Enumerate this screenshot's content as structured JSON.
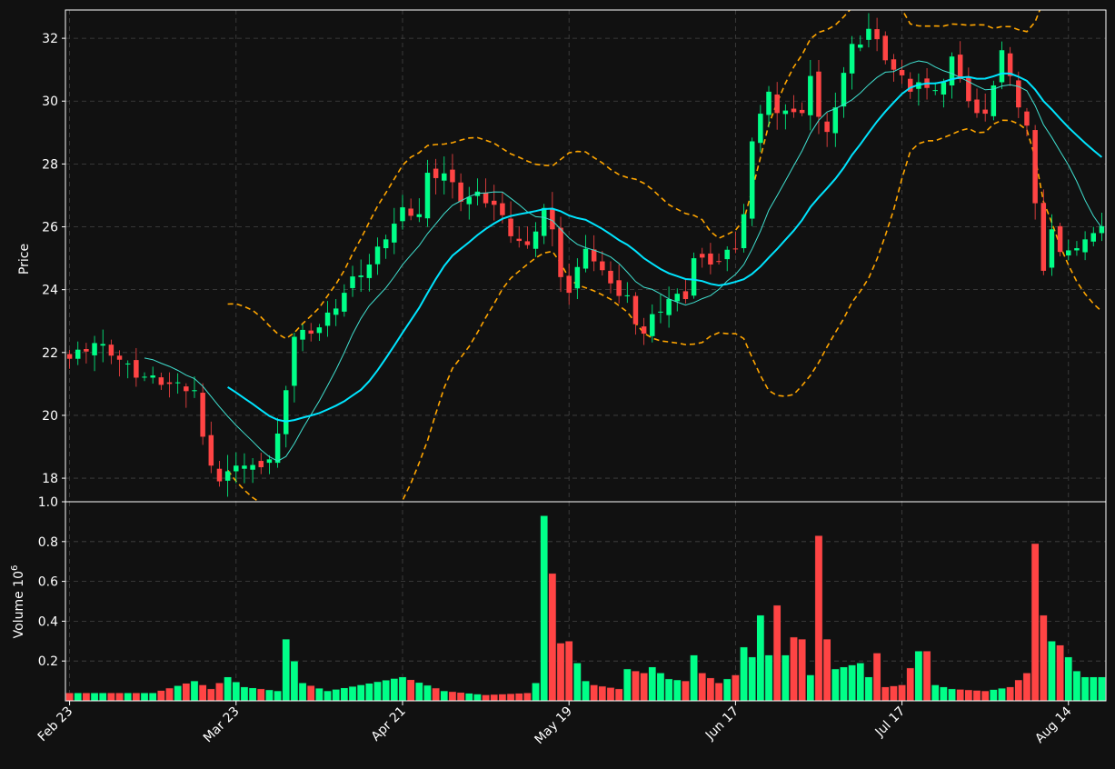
{
  "chart_data": {
    "type": "candlestick",
    "colors": {
      "background": "#111111",
      "up": "#00ff88",
      "down": "#ff4444",
      "grid": "#444444",
      "axes": "#ffffff",
      "sma_long": "#00e5ff",
      "sma_short": "#40e0d0",
      "bands": "#ffa500"
    },
    "price_panel": {
      "ylabel": "Price",
      "ylim": [
        17.25,
        32.9
      ],
      "yticks": [
        "18",
        "20",
        "22",
        "24",
        "26",
        "28",
        "30",
        "32"
      ],
      "grid": true
    },
    "volume_panel": {
      "ylabel": "Volume  10",
      "ylabel_exponent": "6",
      "ylim": [
        0,
        1.0
      ],
      "yticks": [
        "0.2",
        "0.4",
        "0.6",
        "0.8",
        "1.0"
      ],
      "grid": true
    },
    "x_ticks": [
      {
        "label": "Feb 23",
        "index": 0
      },
      {
        "label": "Mar 23",
        "index": 20
      },
      {
        "label": "Apr 21",
        "index": 40
      },
      {
        "label": "May 19",
        "index": 60
      },
      {
        "label": "Jun 17",
        "index": 80
      },
      {
        "label": "Jul 17",
        "index": 100
      },
      {
        "label": "Aug 14",
        "index": 120
      }
    ],
    "n_periods": 125,
    "anchors": {
      "close": [
        [
          0,
          21.8
        ],
        [
          3,
          22.3
        ],
        [
          5,
          22.0
        ],
        [
          8,
          21.3
        ],
        [
          12,
          21.0
        ],
        [
          15,
          20.8
        ],
        [
          16,
          19.2
        ],
        [
          17,
          18.5
        ],
        [
          18,
          17.9
        ],
        [
          19,
          18.1
        ],
        [
          20,
          18.5
        ],
        [
          22,
          18.3
        ],
        [
          24,
          18.6
        ],
        [
          25,
          19.3
        ],
        [
          27,
          22.5
        ],
        [
          30,
          22.8
        ],
        [
          32,
          23.5
        ],
        [
          34,
          24.3
        ],
        [
          36,
          24.8
        ],
        [
          38,
          25.7
        ],
        [
          40,
          26.5
        ],
        [
          42,
          26.4
        ],
        [
          43,
          27.6
        ],
        [
          45,
          27.7
        ],
        [
          47,
          26.9
        ],
        [
          49,
          27.0
        ],
        [
          51,
          26.7
        ],
        [
          53,
          25.8
        ],
        [
          55,
          25.3
        ],
        [
          57,
          26.6
        ],
        [
          58,
          25.8
        ],
        [
          59,
          24.5
        ],
        [
          60,
          23.9
        ],
        [
          61,
          24.6
        ],
        [
          62,
          25.4
        ],
        [
          63,
          24.9
        ],
        [
          64,
          24.5
        ],
        [
          65,
          24.3
        ],
        [
          66,
          23.8
        ],
        [
          67,
          23.7
        ],
        [
          68,
          23.0
        ],
        [
          69,
          22.6
        ],
        [
          70,
          23.1
        ],
        [
          72,
          23.7
        ],
        [
          74,
          23.8
        ],
        [
          75,
          25.0
        ],
        [
          76,
          24.9
        ],
        [
          78,
          24.9
        ],
        [
          80,
          25.4
        ],
        [
          81,
          26.4
        ],
        [
          82,
          28.6
        ],
        [
          83,
          29.7
        ],
        [
          84,
          30.3
        ],
        [
          85,
          29.5
        ],
        [
          86,
          29.8
        ],
        [
          88,
          29.5
        ],
        [
          89,
          30.9
        ],
        [
          90,
          29.5
        ],
        [
          91,
          28.9
        ],
        [
          92,
          29.9
        ],
        [
          93,
          30.9
        ],
        [
          94,
          31.7
        ],
        [
          95,
          31.9
        ],
        [
          96,
          32.3
        ],
        [
          98,
          31.4
        ],
        [
          99,
          31.0
        ],
        [
          101,
          30.4
        ],
        [
          102,
          30.6
        ],
        [
          103,
          30.3
        ],
        [
          105,
          30.6
        ],
        [
          106,
          31.3
        ],
        [
          107,
          30.8
        ],
        [
          108,
          30.0
        ],
        [
          109,
          29.5
        ],
        [
          110,
          29.7
        ],
        [
          111,
          30.5
        ],
        [
          112,
          31.5
        ],
        [
          113,
          30.9
        ],
        [
          114,
          29.8
        ],
        [
          115,
          29.1
        ],
        [
          117,
          24.6
        ],
        [
          118,
          25.8
        ],
        [
          119,
          25.3
        ],
        [
          121,
          25.2
        ],
        [
          122,
          25.7
        ],
        [
          124,
          25.9
        ]
      ],
      "volume": [
        [
          0,
          0.04
        ],
        [
          10,
          0.04
        ],
        [
          15,
          0.1
        ],
        [
          17,
          0.06
        ],
        [
          19,
          0.12
        ],
        [
          21,
          0.07
        ],
        [
          25,
          0.05
        ],
        [
          26,
          0.31
        ],
        [
          28,
          0.09
        ],
        [
          31,
          0.05
        ],
        [
          35,
          0.08
        ],
        [
          40,
          0.12
        ],
        [
          45,
          0.05
        ],
        [
          50,
          0.03
        ],
        [
          55,
          0.04
        ],
        [
          56,
          0.09
        ],
        [
          57,
          0.93
        ],
        [
          58,
          0.64
        ],
        [
          59,
          0.29
        ],
        [
          60,
          0.3
        ],
        [
          61,
          0.19
        ],
        [
          62,
          0.1
        ],
        [
          63,
          0.08
        ],
        [
          66,
          0.06
        ],
        [
          67,
          0.16
        ],
        [
          69,
          0.14
        ],
        [
          70,
          0.17
        ],
        [
          72,
          0.11
        ],
        [
          74,
          0.1
        ],
        [
          75,
          0.23
        ],
        [
          76,
          0.14
        ],
        [
          78,
          0.09
        ],
        [
          80,
          0.13
        ],
        [
          81,
          0.27
        ],
        [
          82,
          0.22
        ],
        [
          83,
          0.43
        ],
        [
          84,
          0.23
        ],
        [
          85,
          0.48
        ],
        [
          86,
          0.23
        ],
        [
          87,
          0.32
        ],
        [
          88,
          0.31
        ],
        [
          89,
          0.13
        ],
        [
          90,
          0.83
        ],
        [
          91,
          0.31
        ],
        [
          92,
          0.16
        ],
        [
          95,
          0.19
        ],
        [
          96,
          0.12
        ],
        [
          97,
          0.24
        ],
        [
          98,
          0.07
        ],
        [
          100,
          0.08
        ],
        [
          102,
          0.25
        ],
        [
          103,
          0.25
        ],
        [
          104,
          0.08
        ],
        [
          106,
          0.06
        ],
        [
          110,
          0.05
        ],
        [
          113,
          0.07
        ],
        [
          115,
          0.14
        ],
        [
          116,
          0.79
        ],
        [
          117,
          0.43
        ],
        [
          118,
          0.3
        ],
        [
          119,
          0.28
        ],
        [
          120,
          0.22
        ],
        [
          121,
          0.15
        ],
        [
          122,
          0.12
        ]
      ]
    },
    "indicators": {
      "sma_short_window": 10,
      "sma_long_window": 20,
      "bollinger_window": 20,
      "bollinger_std": 2
    }
  }
}
